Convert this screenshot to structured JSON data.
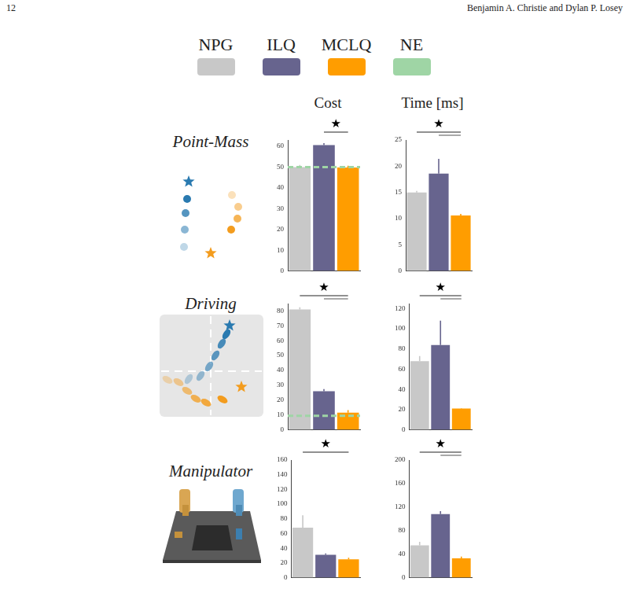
{
  "header": {
    "page": "12",
    "authors": "Benjamin A. Christie and Dylan P. Losey"
  },
  "legend_entries": [
    {
      "name": "NPG",
      "color": "#c8c8c8"
    },
    {
      "name": "ILQ",
      "color": "#67648e"
    },
    {
      "name": "MCLQ",
      "color": "#ff9d00"
    },
    {
      "name": "NE",
      "color": "#9fd5a5"
    }
  ],
  "columns": [
    "Cost",
    "Time [ms]"
  ],
  "rows": [
    "Point-Mass",
    "Driving",
    "Manipulator"
  ],
  "chart_data": [
    {
      "type": "bar",
      "categories": [
        "NPG",
        "ILQ",
        "MCLQ"
      ],
      "values": [
        50,
        60.5,
        49.8
      ],
      "errors": [
        1,
        1,
        0.8
      ],
      "colors": [
        "#c8c8c8",
        "#67648e",
        "#ff9d00"
      ],
      "ylim": [
        0,
        63
      ],
      "yticks": [
        0,
        10,
        20,
        30,
        40,
        50,
        60
      ],
      "grid": false,
      "tick_labels": "y",
      "reference": {
        "name": "NE",
        "value": 50,
        "line_style": "dashed"
      },
      "significance": {
        "label": "★",
        "pairs": [
          [
            "ILQ",
            "MCLQ"
          ]
        ]
      }
    },
    {
      "type": "bar",
      "categories": [
        "NPG",
        "ILQ",
        "MCLQ"
      ],
      "values": [
        15,
        18.6,
        10.6
      ],
      "errors": [
        0.3,
        2.8,
        0.3
      ],
      "colors": [
        "#c8c8c8",
        "#67648e",
        "#ff9d00"
      ],
      "ylim": [
        0,
        25
      ],
      "yticks": [
        0,
        5,
        10,
        15,
        20,
        25
      ],
      "grid": false,
      "tick_labels": "y",
      "significance": {
        "label": "★",
        "pairs": [
          [
            "NPG",
            "MCLQ"
          ],
          [
            "ILQ",
            "MCLQ"
          ]
        ]
      }
    },
    {
      "type": "bar",
      "categories": [
        "NPG",
        "ILQ",
        "MCLQ"
      ],
      "values": [
        81,
        26,
        11.5
      ],
      "errors": [
        1.5,
        1.5,
        1.8
      ],
      "colors": [
        "#c8c8c8",
        "#67648e",
        "#ff9d00"
      ],
      "ylim": [
        0,
        85
      ],
      "yticks": [
        0,
        10,
        20,
        30,
        40,
        50,
        60,
        70,
        80
      ],
      "grid": false,
      "tick_labels": "y",
      "reference": {
        "name": "NE",
        "value": 9.5,
        "line_style": "dashed"
      },
      "significance": {
        "label": "★",
        "pairs": [
          [
            "NPG",
            "MCLQ"
          ],
          [
            "ILQ",
            "MCLQ"
          ]
        ]
      }
    },
    {
      "type": "bar",
      "categories": [
        "NPG",
        "ILQ",
        "MCLQ"
      ],
      "values": [
        68,
        84,
        21
      ],
      "errors": [
        5,
        24,
        0.5
      ],
      "colors": [
        "#c8c8c8",
        "#67648e",
        "#ff9d00"
      ],
      "ylim": [
        0,
        125
      ],
      "yticks": [
        0,
        20,
        40,
        60,
        80,
        100,
        120
      ],
      "grid": false,
      "tick_labels": "y",
      "significance": {
        "label": "★",
        "pairs": [
          [
            "NPG",
            "MCLQ"
          ],
          [
            "ILQ",
            "MCLQ"
          ]
        ]
      }
    },
    {
      "type": "bar",
      "categories": [
        "NPG",
        "ILQ",
        "MCLQ"
      ],
      "values": [
        68,
        31,
        25
      ],
      "errors": [
        17,
        2,
        2
      ],
      "colors": [
        "#c8c8c8",
        "#67648e",
        "#ff9d00"
      ],
      "ylim": [
        0,
        160
      ],
      "yticks": [
        0,
        20,
        40,
        60,
        80,
        100,
        120,
        140,
        160
      ],
      "grid": false,
      "tick_labels": "y",
      "significance": {
        "label": "★",
        "pairs": [
          [
            "NPG",
            "MCLQ"
          ]
        ]
      }
    },
    {
      "type": "bar",
      "categories": [
        "NPG",
        "ILQ",
        "MCLQ"
      ],
      "values": [
        55,
        108,
        33
      ],
      "errors": [
        6,
        5,
        3
      ],
      "colors": [
        "#c8c8c8",
        "#67648e",
        "#ff9d00"
      ],
      "ylim": [
        0,
        200
      ],
      "yticks": [
        0,
        40,
        80,
        120,
        160,
        200
      ],
      "grid": false,
      "tick_labels": "y",
      "significance": {
        "label": "★",
        "pairs": [
          [
            "NPG",
            "MCLQ"
          ],
          [
            "ILQ",
            "MCLQ"
          ]
        ]
      }
    }
  ]
}
